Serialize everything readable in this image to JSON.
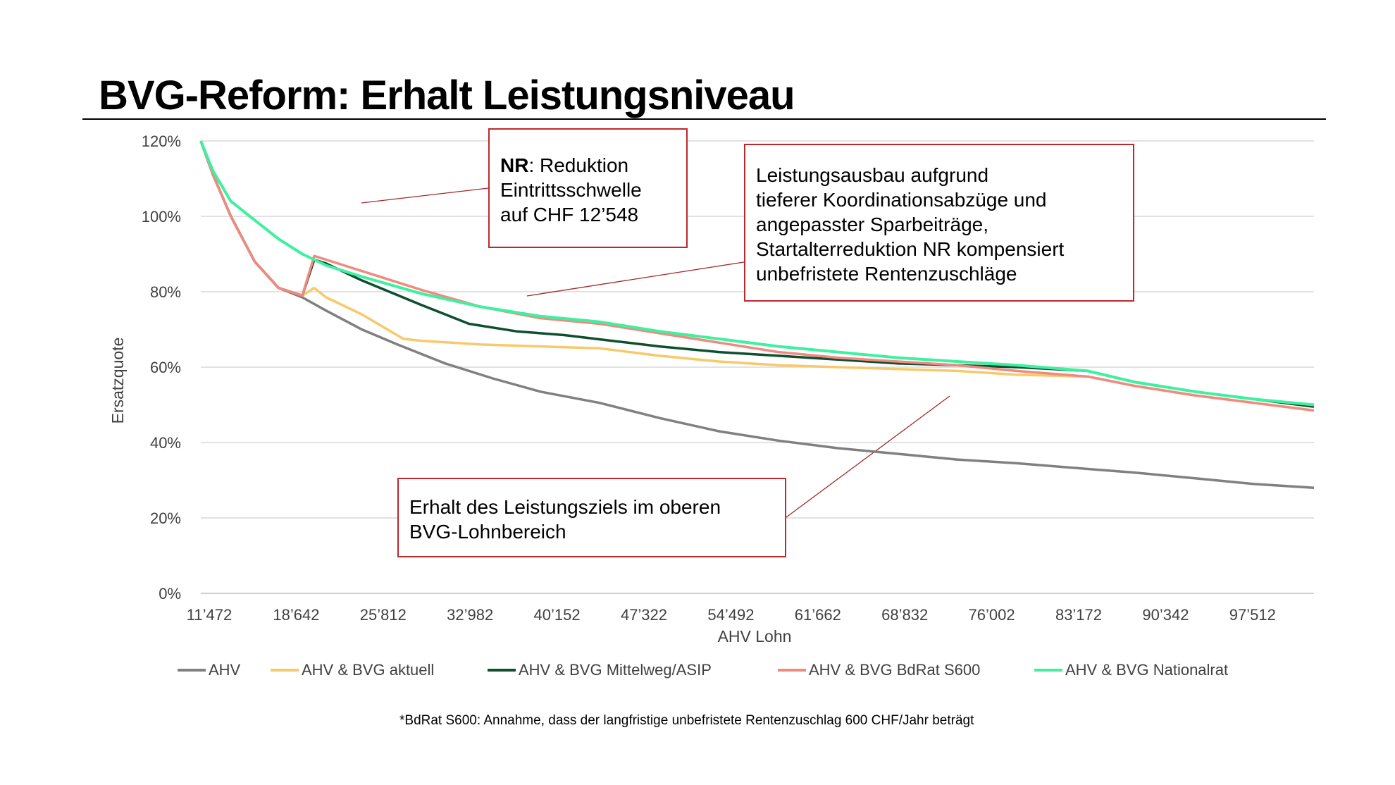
{
  "page": {
    "title": "BVG-Reform: Erhalt Leistungsniveau",
    "footnote": "*BdRat S600: Annahme, dass der langfristige unbefristete Rentenzuschlag 600 CHF/Jahr beträgt"
  },
  "annotations": {
    "nr": {
      "bold": "NR",
      "line1_rest": ": Reduktion",
      "line2": "Eintrittsschwelle",
      "line3": "auf CHF 12’548"
    },
    "ausbau": {
      "lines": [
        "Leistungsausbau aufgrund",
        "tieferer Koordinationsabzüge und",
        "angepasster Sparbeiträge,",
        "Startalterreduktion NR kompensiert",
        "unbefristete Rentenzuschläge"
      ]
    },
    "erhalt": {
      "lines": [
        "Erhalt des Leistungsziels im oberen",
        "BVG-Lohnbereich"
      ]
    }
  },
  "chart_data": {
    "type": "line",
    "xlabel": "AHV Lohn",
    "ylabel": "Ersatzquote",
    "ylim": [
      0,
      120
    ],
    "yticks": [
      "0%",
      "20%",
      "40%",
      "60%",
      "80%",
      "100%",
      "120%"
    ],
    "xlim": [
      11472,
      105000
    ],
    "xticks": [
      "11’472",
      "18’642",
      "25’812",
      "32’982",
      "40’152",
      "47’322",
      "54’492",
      "61’662",
      "68’832",
      "76’002",
      "83’172",
      "90’342",
      "97’512"
    ],
    "grid": true,
    "legend_position": "bottom",
    "series": [
      {
        "name": "AHV",
        "color": "#808080",
        "x": [
          11472,
          12500,
          14000,
          16000,
          18000,
          20000,
          22000,
          25000,
          28000,
          32000,
          36000,
          40000,
          45000,
          50000,
          55000,
          60000,
          65000,
          70000,
          75000,
          80000,
          86000,
          90000,
          95000,
          100000,
          105000
        ],
        "y": [
          120,
          111,
          100,
          88,
          81,
          78.5,
          75,
          70,
          66,
          61,
          57,
          53.5,
          50.5,
          46.5,
          43,
          40.5,
          38.5,
          37,
          35.5,
          34.5,
          33,
          32,
          30.5,
          29,
          28
        ]
      },
      {
        "name": "AHV & BVG aktuell",
        "color": "#f7c96b",
        "x": [
          11472,
          12500,
          14000,
          16000,
          18000,
          20000,
          21000,
          22000,
          25000,
          28500,
          30000,
          35000,
          40000,
          45000,
          50000,
          55000,
          60000,
          65000,
          70000,
          75000,
          80000,
          86000,
          90000,
          95000,
          100000,
          105000
        ],
        "y": [
          120,
          111,
          100,
          88,
          81,
          79,
          81,
          78.5,
          74,
          67.5,
          67,
          66,
          65.5,
          65,
          63,
          61.5,
          60.5,
          60,
          59.5,
          59,
          58,
          57.5,
          55,
          52.5,
          50.5,
          48.5
        ]
      },
      {
        "name": "AHV & BVG Mittelweg/ASIP",
        "color": "#0d4f2f",
        "x": [
          11472,
          12500,
          14000,
          16000,
          18000,
          20000,
          21000,
          22000,
          25000,
          30000,
          34000,
          38000,
          42000,
          46000,
          50000,
          55000,
          60000,
          65000,
          70000,
          75000,
          80000,
          86000,
          90000,
          95000,
          100000,
          105000
        ],
        "y": [
          120,
          111,
          100,
          88,
          81,
          79,
          88.5,
          87.5,
          83,
          76.5,
          71.5,
          69.5,
          68.5,
          67,
          65.5,
          64,
          63,
          62,
          61,
          60.5,
          60,
          59,
          56,
          53.5,
          51.5,
          49.5
        ]
      },
      {
        "name": "AHV & BVG BdRat S600",
        "color": "#f08a80",
        "x": [
          11472,
          12500,
          14000,
          16000,
          18000,
          20000,
          21000,
          22000,
          25000,
          30000,
          35000,
          40000,
          45000,
          50000,
          55000,
          60000,
          65000,
          70000,
          75000,
          80000,
          86000,
          90000,
          95000,
          100000,
          105000
        ],
        "y": [
          120,
          111,
          100,
          88,
          81,
          79,
          89.5,
          88.5,
          85.5,
          80.5,
          76,
          73,
          71.5,
          69,
          66.5,
          64,
          62.5,
          61.5,
          60.5,
          59,
          57.5,
          55,
          52.5,
          50.5,
          48.5
        ]
      },
      {
        "name": "AHV & BVG Nationalrat",
        "color": "#3ef0a0",
        "x": [
          11472,
          12500,
          14000,
          16000,
          18000,
          20000,
          21000,
          22000,
          25000,
          30000,
          35000,
          40000,
          45000,
          50000,
          55000,
          60000,
          65000,
          70000,
          75000,
          80000,
          86000,
          90000,
          95000,
          100000,
          105000
        ],
        "y": [
          120,
          112,
          104,
          99,
          94,
          90,
          88.5,
          87,
          84,
          79.5,
          76,
          73.5,
          72,
          69.5,
          67.5,
          65.5,
          64,
          62.5,
          61.5,
          60.5,
          59,
          56,
          53.5,
          51.5,
          50
        ]
      }
    ]
  }
}
